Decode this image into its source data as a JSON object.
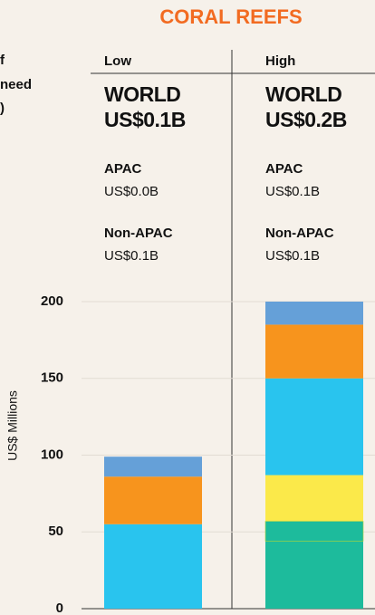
{
  "side_text": [
    "f",
    "need",
    ")"
  ],
  "panels": [
    {
      "world": "WORLD",
      "world_value": "US$0.1B",
      "apac": "APAC",
      "apac_value": "US$0.0B",
      "non_apac": "Non-APAC",
      "non_apac_value": "US$0.1B"
    },
    {
      "world": "WORLD",
      "world_value": "US$0.2B",
      "apac": "APAC",
      "apac_value": "US$0.1B",
      "non_apac": "Non-APAC",
      "non_apac_value": "US$0.1B"
    }
  ],
  "chart_data": {
    "type": "stacked_bar",
    "title": "CORAL REEFS",
    "y_label": "US$ Millions",
    "categories": [
      "Low",
      "High"
    ],
    "series": [
      {
        "color": "#1dbb9c",
        "values": [
          null,
          44
        ]
      },
      {
        "color": "#1dbb9c",
        "values": [
          null,
          13
        ]
      },
      {
        "color": "#fbe94a",
        "values": [
          null,
          30
        ]
      },
      {
        "color": "#29c4ee",
        "values": [
          55,
          63
        ]
      },
      {
        "color": "#f7941d",
        "values": [
          31,
          35
        ]
      },
      {
        "color": "#65a0d8",
        "values": [
          13,
          15
        ]
      }
    ],
    "ylim": [
      0,
      200
    ],
    "yticks": [
      0,
      50,
      100,
      150,
      200
    ],
    "grid": true
  }
}
